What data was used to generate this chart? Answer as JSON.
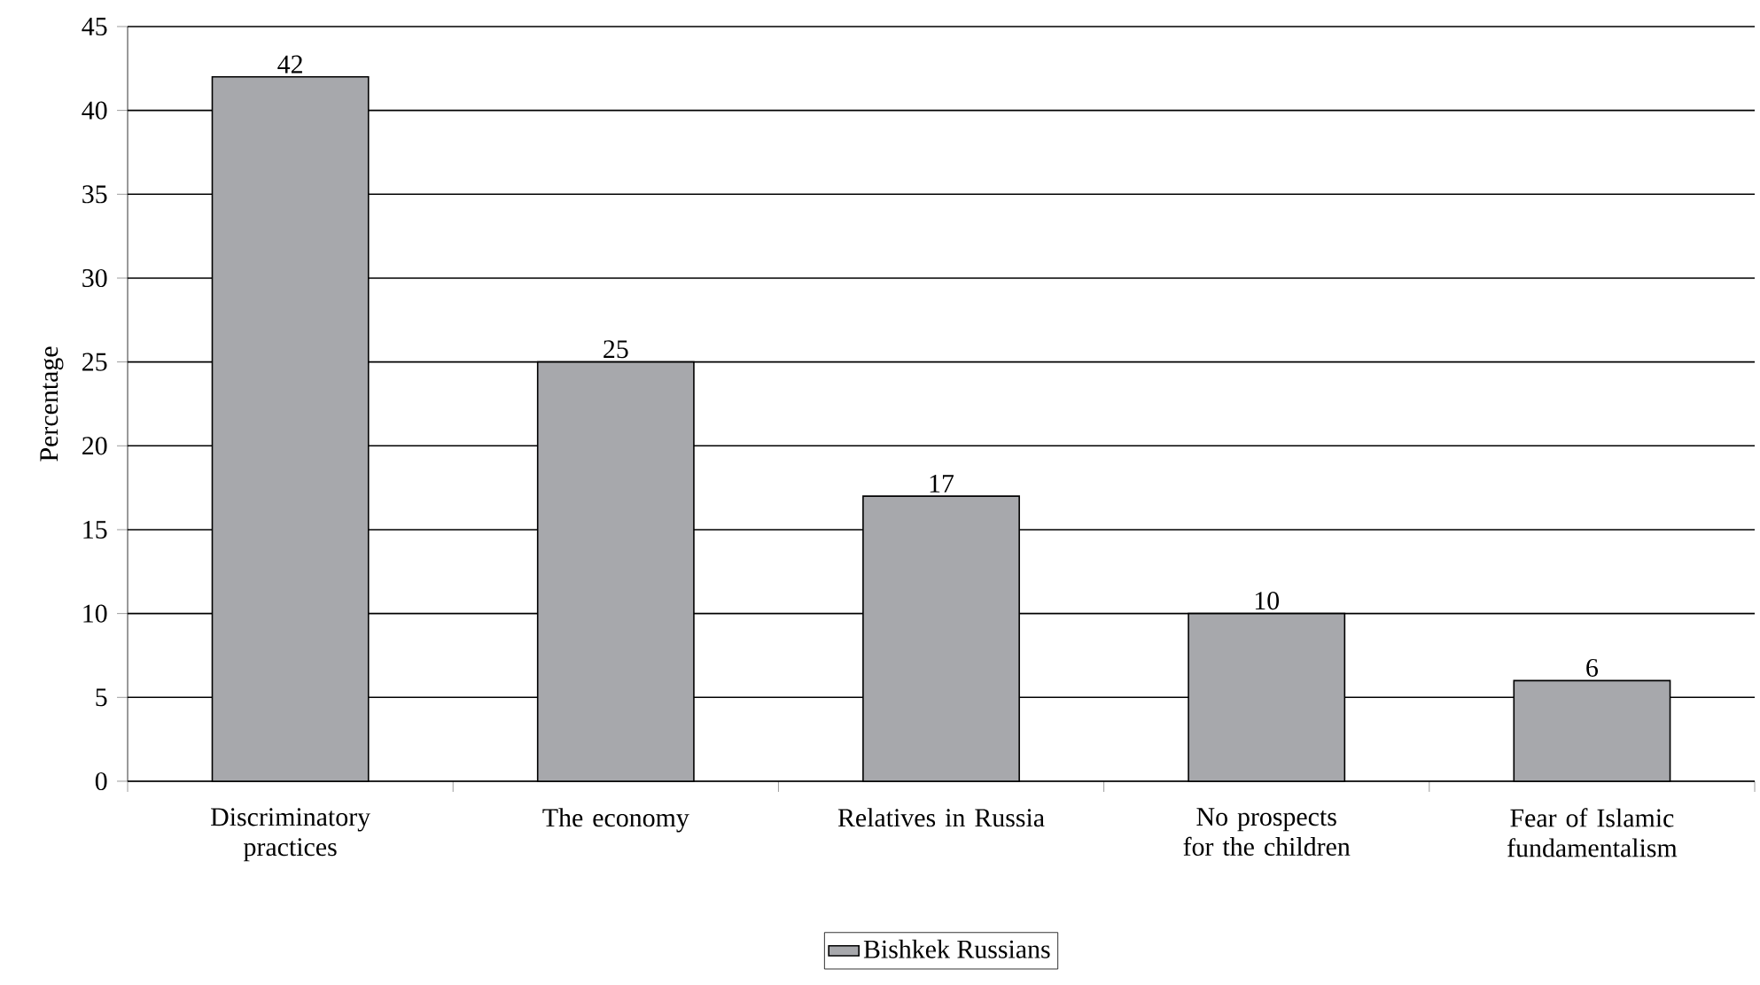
{
  "chart_data": {
    "type": "bar",
    "ylabel": "Percentage",
    "categories": [
      "Discriminatory practices",
      "The economy",
      "Relatives in Russia",
      "No prospects for the children",
      "Fear of Islamic fundamentalism"
    ],
    "series": [
      {
        "name": "Bishkek Russians",
        "color": "#a7a8ac",
        "values": [
          42,
          25,
          17,
          10,
          6
        ]
      }
    ],
    "ylim": [
      0,
      45
    ],
    "yticks": [
      0,
      5,
      10,
      15,
      20,
      25,
      30,
      35,
      40,
      45
    ],
    "grid": "y",
    "legend": "bottom",
    "data_labels": true
  }
}
